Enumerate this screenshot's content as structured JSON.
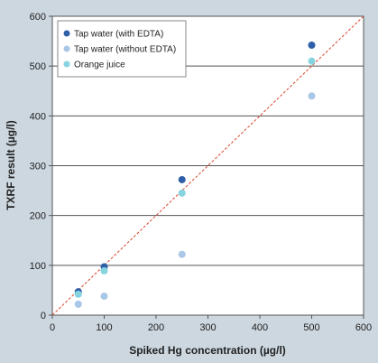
{
  "chart_data": {
    "type": "scatter",
    "title": "",
    "xlabel": "Spiked Hg concentration (µg/l)",
    "ylabel": "TXRF result (µg/l)",
    "xlim": [
      0,
      600
    ],
    "ylim": [
      0,
      600
    ],
    "xticks": [
      0,
      100,
      200,
      300,
      400,
      500,
      600
    ],
    "yticks": [
      0,
      100,
      200,
      300,
      400,
      500,
      600
    ],
    "grid": "horizontal",
    "legend_position": "top-left",
    "reference_line": {
      "style": "dashed",
      "color": "#d9462c",
      "from": [
        0,
        0
      ],
      "to": [
        600,
        600
      ]
    },
    "series": [
      {
        "name": "Tap water (with EDTA)",
        "color": "#2f5fa8",
        "x": [
          50,
          100,
          250,
          500
        ],
        "y": [
          47,
          97,
          272,
          542
        ]
      },
      {
        "name": "Tap water (without EDTA)",
        "color": "#a9c7e6",
        "x": [
          50,
          100,
          250,
          500
        ],
        "y": [
          22,
          38,
          122,
          440
        ]
      },
      {
        "name": "Orange juice",
        "color": "#86d4e0",
        "x": [
          50,
          100,
          250,
          500
        ],
        "y": [
          42,
          89,
          245,
          510
        ]
      }
    ]
  }
}
